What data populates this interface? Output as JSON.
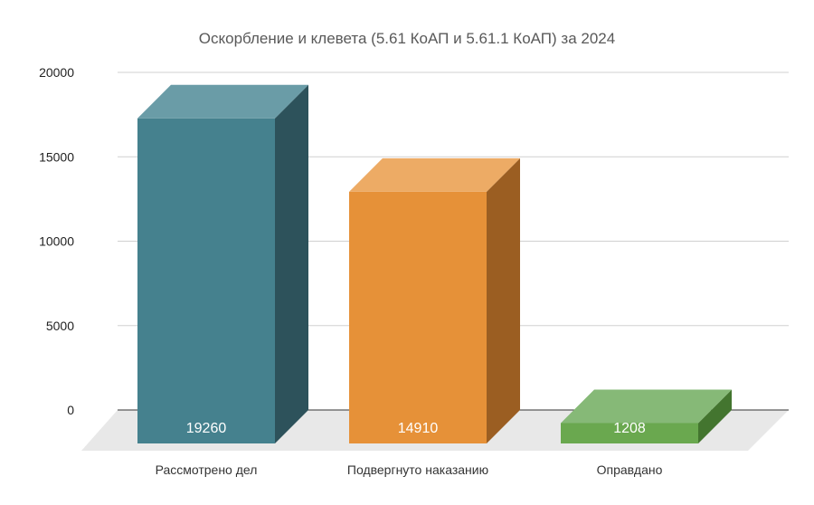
{
  "chart_data": {
    "type": "bar",
    "title": "Оскорбление и клевета (5.61 КоАП и 5.61.1 КоАП) за 2024",
    "categories": [
      "Рассмотрено дел",
      "Подвергнуто наказанию",
      "Оправдано"
    ],
    "values": [
      19260,
      14910,
      1208
    ],
    "data_labels": [
      "19260",
      "14910",
      "1208"
    ],
    "y_ticks": [
      0,
      5000,
      10000,
      15000,
      20000
    ],
    "y_tick_labels": [
      "0",
      "5000",
      "10000",
      "15000",
      "20000"
    ],
    "ylim": [
      0,
      20000
    ],
    "xlabel": "",
    "ylabel": "",
    "grid": true,
    "legend": "none",
    "style": "3d-columns",
    "colors": [
      {
        "front": "#45818e",
        "top": "#6a9ca7",
        "side": "#2d525b"
      },
      {
        "front": "#e69138",
        "top": "#edab65",
        "side": "#9b5e22"
      },
      {
        "front": "#6aa84f",
        "top": "#86b977",
        "side": "#43752f"
      }
    ]
  }
}
